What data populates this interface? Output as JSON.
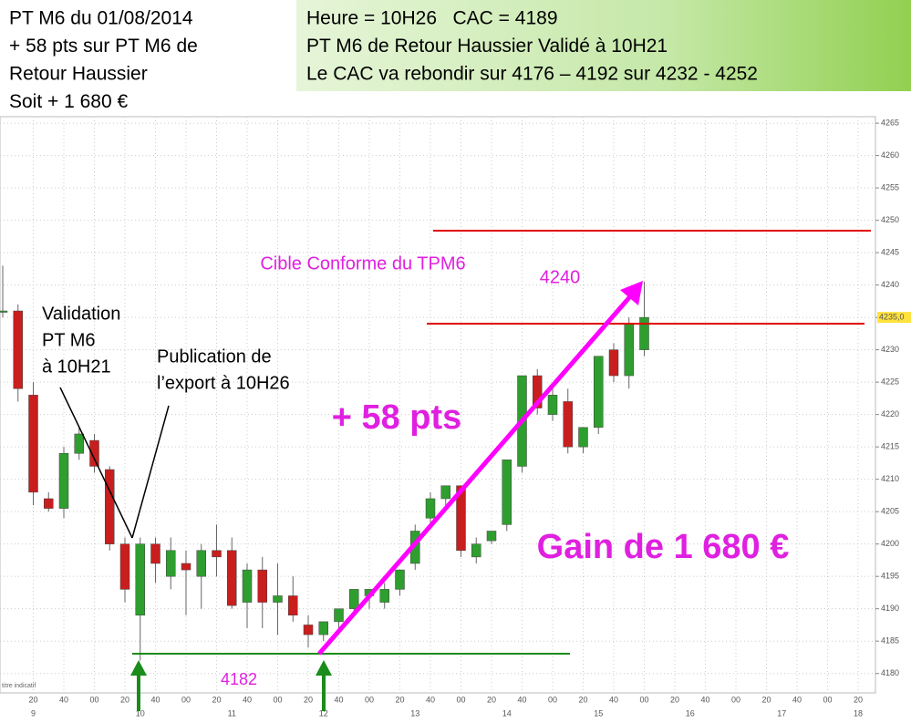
{
  "header": {
    "left_lines": [
      "PT M6 du 01/08/2014",
      "+ 58 pts sur PT M6 de",
      "Retour Haussier",
      "Soit + 1 680 €"
    ],
    "right_lines": [
      "Heure = 10H26   CAC = 4189",
      "PT M6 de Retour Haussier Validé à 10H21",
      "Le CAC va rebondir sur 4176 – 4192 sur 4232 - 4252"
    ]
  },
  "chart_data": {
    "type": "candlestick",
    "up_color": "#2e9e2e",
    "down_color": "#c81e1e",
    "open": [
      4236,
      4236,
      4223,
      4207,
      4205.5,
      4214,
      4216,
      4211.5,
      4200,
      4189,
      4200,
      4195,
      4197,
      4195,
      4199,
      4199,
      4191,
      4196,
      4191,
      4192,
      4187.5,
      4186,
      4188,
      4190,
      4192,
      4191,
      4193,
      4197,
      4204,
      4207,
      4209,
      4198,
      4200.5,
      4203,
      4212,
      4226,
      4220,
      4222,
      4215,
      4218,
      4230,
      4226,
      4230
    ],
    "high": [
      4243,
      4237,
      4225,
      4208,
      4215,
      4218,
      4217,
      4212,
      4201,
      4201,
      4201,
      4201,
      4199,
      4200,
      4203,
      4201,
      4197,
      4198,
      4197,
      4195,
      4189,
      4188,
      4190,
      4193,
      4193,
      4194,
      4196,
      4203,
      4208,
      4209,
      4209,
      4201,
      4202,
      4213,
      4226,
      4227,
      4224,
      4224,
      4218,
      4229,
      4231,
      4235,
      4240.5
    ],
    "low": [
      4235,
      4222,
      4206,
      4205,
      4204,
      4213,
      4211,
      4199,
      4191,
      4182,
      4194,
      4193,
      4189,
      4190,
      4195,
      4190,
      4187,
      4187,
      4186,
      4188,
      4184,
      4185,
      4187,
      4189,
      4190,
      4190,
      4192,
      4196,
      4203,
      4206,
      4198,
      4197,
      4200,
      4202,
      4211,
      4220,
      4219,
      4214,
      4214,
      4217,
      4225,
      4224,
      4229
    ],
    "close": [
      4236,
      4224,
      4208,
      4205.5,
      4214,
      4217,
      4212,
      4200,
      4193,
      4200,
      4197,
      4199,
      4196,
      4199,
      4198,
      4190.5,
      4196,
      4191,
      4192,
      4189,
      4186,
      4188,
      4190,
      4193,
      4193,
      4193,
      4196,
      4202,
      4207,
      4209,
      4199,
      4200,
      4202,
      4213,
      4226,
      4221,
      4223,
      4215,
      4218,
      4229,
      4226,
      4234,
      4235
    ],
    "ylim": [
      4177,
      4266
    ],
    "yticks": [
      4180,
      4185,
      4190,
      4195,
      4200,
      4205,
      4210,
      4215,
      4220,
      4225,
      4230,
      4235,
      4240,
      4245,
      4250,
      4255,
      4260,
      4265
    ],
    "last_price": {
      "value": 4235,
      "label": "4235,0"
    },
    "time_labels": [
      "20",
      "40",
      "00",
      "20",
      "40",
      "00",
      "20",
      "40",
      "00",
      "20",
      "40",
      "00",
      "20",
      "40",
      "00",
      "20",
      "40",
      "00",
      "20",
      "40",
      "00",
      "20",
      "40",
      "00",
      "20",
      "40",
      "00",
      "20"
    ],
    "day_labels": [
      "9",
      "10",
      "11",
      "12",
      "13",
      "14",
      "15",
      "16",
      "17",
      "18"
    ],
    "grid": true,
    "annotations": {
      "target": "Cible Conforme du TPM6",
      "target_value": "4240",
      "validation": [
        "Validation",
        "PT M6",
        "à 10H21"
      ],
      "publication": [
        "Publication de",
        "l’export à 10H26"
      ],
      "gain_points": "+ 58 pts",
      "gain_euros": "Gain de 1 680 €",
      "low_value": "4182",
      "source": "titre indicatif"
    }
  }
}
